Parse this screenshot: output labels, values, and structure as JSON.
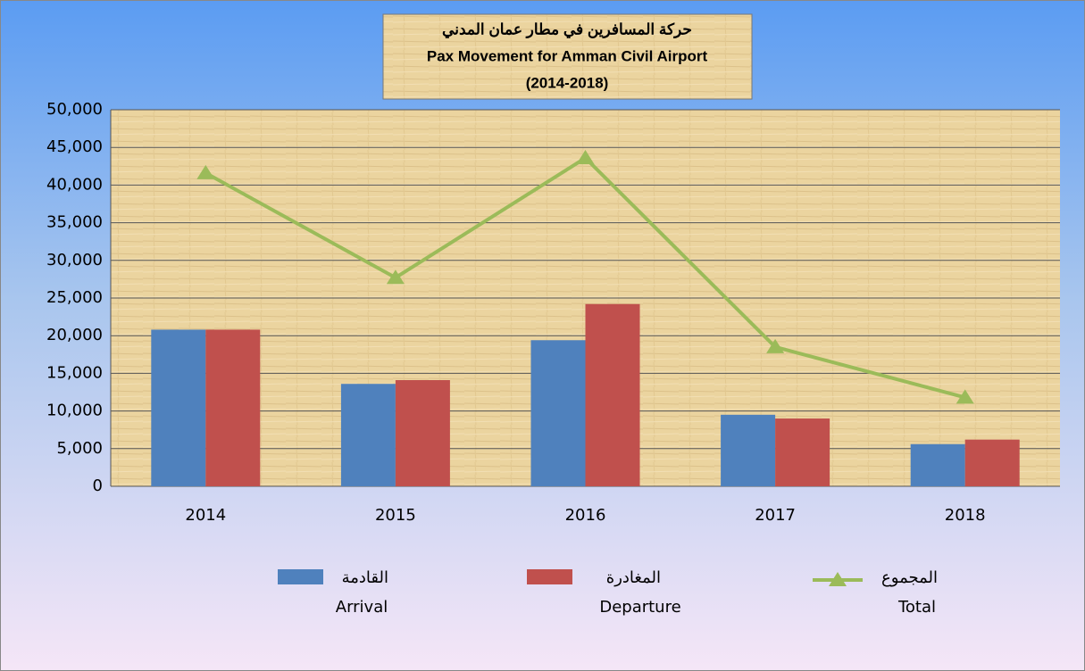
{
  "chart_data": {
    "type": "bar_line",
    "title": [
      "حركة المسافرين في مطار عمان المدني",
      "Pax Movement for Amman Civil Airport",
      "(2014-2018)"
    ],
    "categories": [
      "2014",
      "2015",
      "2016",
      "2017",
      "2018"
    ],
    "series": [
      {
        "name": "القادمة",
        "name_en": "Arrival",
        "type": "bar",
        "color": "#4f81bd",
        "values": [
          20800,
          13600,
          19400,
          9500,
          5600
        ]
      },
      {
        "name": "المغادرة",
        "name_en": "Departure",
        "type": "bar",
        "color": "#c0504d",
        "values": [
          20800,
          14100,
          24200,
          9000,
          6200
        ]
      },
      {
        "name": "المجموع",
        "name_en": "Total",
        "type": "line",
        "color": "#9bbb59",
        "values": [
          41600,
          27700,
          43600,
          18500,
          11800
        ]
      }
    ],
    "ylim": [
      0,
      50000
    ],
    "yticks": [
      0,
      {
        "value": 5000,
        "label": "5,000"
      },
      {
        "value": 10000,
        "label": "10,000"
      },
      {
        "value": 15000,
        "label": "15,000"
      },
      {
        "value": 20000,
        "label": "20,000"
      },
      {
        "value": 25000,
        "label": "25,000"
      },
      {
        "value": 30000,
        "label": "30,000"
      },
      {
        "value": 35000,
        "label": "35,000"
      },
      {
        "value": 40000,
        "label": "40,000"
      },
      {
        "value": 45000,
        "label": "45,000"
      },
      {
        "value": 50000,
        "label": "50,000"
      }
    ],
    "grid": true
  }
}
